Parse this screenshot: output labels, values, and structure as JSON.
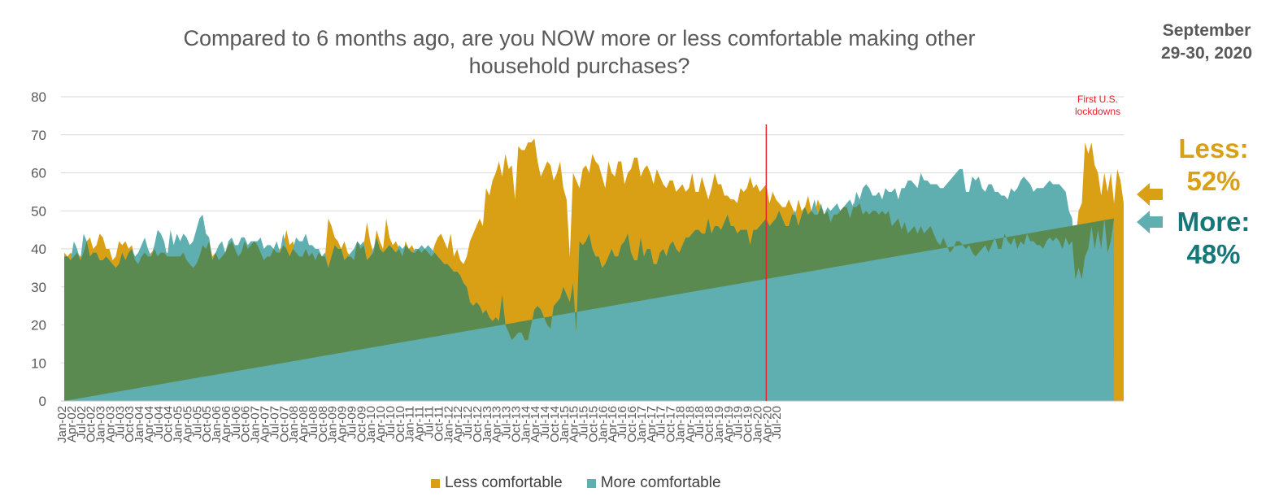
{
  "title_line1": "Compared to 6 months ago, are you NOW more or less comfortable making other",
  "title_line2": "household purchases?",
  "date_note_line1": "September",
  "date_note_line2": "29-30, 2020",
  "annotation": {
    "line1": "First U.S.",
    "line2": "lockdowns",
    "x": "Mar-20",
    "color": "#E8202A"
  },
  "callouts": {
    "less_label": "Less:",
    "less_value": "52%",
    "more_label": "More:",
    "more_value": "48%"
  },
  "legend": {
    "less": "Less comfortable",
    "more": "More comfortable"
  },
  "colors": {
    "less": "#DAA015",
    "more": "#5FAFB0",
    "overlap": "#5A8A4F",
    "gridline": "#D9D9D9",
    "axis_text": "#595959"
  },
  "chart_data": {
    "type": "area",
    "title": "Compared to 6 months ago, are you NOW more or less comfortable making other household purchases?",
    "xlabel": "",
    "ylabel": "",
    "ylim": [
      0,
      80
    ],
    "yticks": [
      0,
      10,
      20,
      30,
      40,
      50,
      60,
      70,
      80
    ],
    "grid": true,
    "legend_position": "bottom",
    "x_tick_labels": [
      "Jan-02",
      "Apr-02",
      "Jul-02",
      "Oct-02",
      "Jan-03",
      "Apr-03",
      "Jul-03",
      "Oct-03",
      "Jan-04",
      "Apr-04",
      "Jul-04",
      "Oct-04",
      "Jan-05",
      "Apr-05",
      "Jul-05",
      "Oct-05",
      "Jan-06",
      "Apr-06",
      "Jul-06",
      "Oct-06",
      "Jan-07",
      "Apr-07",
      "Jul-07",
      "Oct-07",
      "Jan-08",
      "Apr-08",
      "Jul-08",
      "Oct-08",
      "Jan-09",
      "Apr-09",
      "Jul-09",
      "Oct-09",
      "Jan-10",
      "Apr-10",
      "Jul-10",
      "Oct-10",
      "Jan-11",
      "Apr-11",
      "Jul-11",
      "Oct-11",
      "Jan-12",
      "Apr-12",
      "Jul-12",
      "Oct-12",
      "Jan-13",
      "Apr-13",
      "Jul-13",
      "Oct-13",
      "Jan-14",
      "Apr-14",
      "Jul-14",
      "Oct-14",
      "Jan-15",
      "Apr-15",
      "Jul-15",
      "Oct-15",
      "Jan-16",
      "Apr-16",
      "Jul-16",
      "Oct-16",
      "Jan-17",
      "Apr-17",
      "Jul-17",
      "Oct-17",
      "Jan-18",
      "Apr-18",
      "Jul-18",
      "Oct-18",
      "Jan-19",
      "Apr-19",
      "Jul-19",
      "Oct-19",
      "Jan-20",
      "Apr-20",
      "Jul-20"
    ],
    "series": [
      {
        "name": "Less comfortable",
        "values": [
          39,
          38,
          39,
          38,
          39,
          38,
          39,
          42,
          43,
          40,
          41,
          44,
          43,
          40,
          40,
          37,
          38,
          42,
          41,
          42,
          40,
          41,
          37,
          36,
          38,
          39,
          38,
          39,
          40,
          38,
          39,
          39,
          39,
          38,
          38,
          38,
          38,
          39,
          37,
          36,
          35,
          36,
          38,
          41,
          40,
          42,
          38,
          39,
          37,
          38,
          39,
          41,
          42,
          40,
          38,
          39,
          42,
          40,
          41,
          42,
          41,
          39,
          37,
          38,
          38,
          40,
          39,
          40,
          41,
          45,
          41,
          42,
          39,
          38,
          38,
          40,
          38,
          39,
          37,
          39,
          38,
          38,
          48,
          46,
          43,
          42,
          40,
          42,
          39,
          38,
          37,
          42,
          40,
          41,
          47,
          42,
          39,
          45,
          42,
          40,
          48,
          43,
          41,
          42,
          40,
          38,
          42,
          40,
          41,
          39,
          40,
          39,
          40,
          39,
          38,
          41,
          43,
          44,
          42,
          40,
          44,
          38,
          40,
          37,
          36,
          38,
          42,
          44,
          46,
          48,
          46,
          56,
          54,
          58,
          60,
          63,
          59,
          65,
          61,
          62,
          53,
          67,
          66,
          66,
          68,
          68,
          69,
          63,
          59,
          61,
          63,
          62,
          58,
          60,
          63,
          56,
          53,
          38,
          60,
          58,
          56,
          61,
          62,
          60,
          65,
          63,
          62,
          59,
          56,
          63,
          60,
          59,
          63,
          63,
          57,
          60,
          61,
          64,
          64,
          59,
          61,
          62,
          60,
          57,
          61,
          59,
          57,
          56,
          58,
          58,
          55,
          56,
          57,
          55,
          56,
          60,
          55,
          55,
          59,
          56,
          53,
          56,
          60,
          57,
          57,
          54,
          54,
          53,
          53,
          52,
          56,
          55,
          56,
          59,
          56,
          57,
          55,
          56,
          57,
          52,
          55,
          53,
          52,
          51,
          51,
          53,
          51,
          49,
          53,
          50,
          51,
          54,
          50,
          49,
          53,
          51,
          49,
          50,
          47,
          49,
          49,
          50,
          51,
          51,
          48,
          52,
          51,
          52,
          49,
          50,
          49,
          50,
          50,
          49,
          50,
          49,
          50,
          46,
          47,
          48,
          45,
          47,
          44,
          45,
          46,
          44,
          46,
          44,
          45,
          46,
          44,
          42,
          41,
          43,
          41,
          39,
          40,
          42,
          42,
          41,
          40,
          41,
          39,
          38,
          39,
          40,
          41,
          39,
          41,
          43,
          40,
          40,
          44,
          42,
          41,
          43,
          40,
          42,
          41,
          44,
          42,
          42,
          41,
          41,
          40,
          42,
          43,
          42,
          43,
          42,
          40,
          43,
          41,
          42,
          42,
          50,
          52,
          68,
          65,
          68,
          62,
          60,
          54,
          60,
          55,
          60,
          52,
          61,
          58,
          52
        ],
        "color": "#DAA015"
      },
      {
        "name": "More comfortable",
        "values": [
          38,
          38,
          37,
          42,
          40,
          37,
          44,
          42,
          38,
          39,
          39,
          37,
          37,
          38,
          37,
          36,
          35,
          36,
          39,
          37,
          39,
          40,
          38,
          39,
          41,
          43,
          40,
          38,
          41,
          45,
          44,
          42,
          38,
          45,
          41,
          44,
          42,
          44,
          43,
          41,
          42,
          45,
          48,
          49,
          44,
          43,
          37,
          39,
          41,
          42,
          39,
          42,
          43,
          41,
          41,
          43,
          43,
          41,
          42,
          42,
          42,
          43,
          40,
          41,
          41,
          40,
          42,
          39,
          44,
          40,
          38,
          40,
          43,
          42,
          42,
          44,
          41,
          41,
          40,
          40,
          38,
          39,
          35,
          38,
          41,
          40,
          40,
          37,
          38,
          39,
          40,
          42,
          41,
          42,
          37,
          38,
          40,
          43,
          40,
          39,
          40,
          41,
          40,
          39,
          41,
          40,
          41,
          40,
          39,
          40,
          40,
          41,
          40,
          41,
          40,
          39,
          38,
          37,
          36,
          36,
          35,
          34,
          34,
          33,
          31,
          30,
          26,
          25,
          26,
          25,
          23,
          24,
          22,
          21,
          22,
          21,
          28,
          20,
          18,
          16,
          17,
          18,
          18,
          16,
          16,
          20,
          24,
          25,
          24,
          22,
          20,
          19,
          25,
          26,
          27,
          30,
          28,
          26,
          31,
          18,
          42,
          41,
          42,
          44,
          40,
          38,
          38,
          35,
          36,
          38,
          40,
          38,
          38,
          41,
          42,
          44,
          39,
          37,
          37,
          43,
          38,
          40,
          40,
          36,
          36,
          39,
          40,
          38,
          41,
          42,
          40,
          39,
          41,
          43,
          43,
          44,
          45,
          45,
          44,
          44,
          48,
          44,
          46,
          46,
          45,
          47,
          49,
          46,
          46,
          44,
          45,
          45,
          45,
          41,
          45,
          45,
          46,
          47,
          48,
          46,
          47,
          48,
          50,
          48,
          46,
          46,
          49,
          50,
          46,
          49,
          51,
          49,
          50,
          53,
          49,
          52,
          49,
          51,
          50,
          51,
          52,
          50,
          51,
          52,
          53,
          51,
          55,
          53,
          56,
          57,
          56,
          54,
          54,
          55,
          53,
          56,
          55,
          55,
          56,
          53,
          56,
          56,
          58,
          58,
          57,
          56,
          60,
          58,
          58,
          57,
          57,
          57,
          56,
          56,
          57,
          58,
          59,
          60,
          61,
          61,
          55,
          55,
          59,
          58,
          59,
          56,
          55,
          57,
          57,
          55,
          55,
          54,
          54,
          53,
          56,
          55,
          56,
          58,
          59,
          58,
          57,
          55,
          56,
          56,
          56,
          57,
          58,
          57,
          57,
          57,
          56,
          55,
          50,
          48,
          32,
          35,
          32,
          38,
          40,
          46,
          40,
          45,
          40,
          48,
          39,
          42,
          48
        ],
        "color": "#5FAFB0"
      }
    ]
  }
}
